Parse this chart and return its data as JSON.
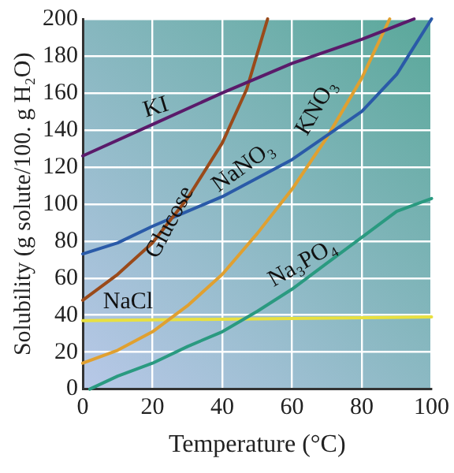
{
  "chart_data": {
    "type": "line",
    "xlabel": "Temperature (°C)",
    "ylabel": "Solubility (g solute/100. g H₂O)",
    "xlim": [
      0,
      100
    ],
    "xticks": [
      0,
      20,
      40,
      60,
      80,
      100
    ],
    "ylim": [
      0,
      200
    ],
    "yticks": [
      0,
      20,
      40,
      60,
      80,
      100,
      120,
      140,
      160,
      180,
      200
    ],
    "grid": true,
    "legend": false,
    "marker": "none",
    "series": [
      {
        "name": "KI",
        "color": "#5a1a6a",
        "x": [
          0,
          20,
          40,
          60,
          80,
          95
        ],
        "values": [
          126,
          143,
          160,
          176,
          189,
          200
        ]
      },
      {
        "name": "Glucose",
        "color": "#9a4a1a",
        "x": [
          0,
          10,
          20,
          30,
          40,
          47,
          53
        ],
        "values": [
          48,
          62,
          79,
          103,
          133,
          162,
          200
        ]
      },
      {
        "name": "NaNO₃",
        "color": "#2a5aa8",
        "x": [
          0,
          10,
          20,
          30,
          40,
          50,
          60,
          70,
          80,
          90,
          100
        ],
        "values": [
          73,
          79,
          88,
          96,
          104,
          114,
          124,
          137,
          150,
          170,
          200
        ]
      },
      {
        "name": "KNO₃",
        "color": "#e0a030",
        "x": [
          0,
          10,
          20,
          30,
          40,
          50,
          60,
          70,
          80,
          88
        ],
        "values": [
          14,
          21,
          31,
          45,
          62,
          84,
          108,
          136,
          168,
          200
        ]
      },
      {
        "name": "Na₃PO₄",
        "color": "#2a9a80",
        "x": [
          2,
          10,
          20,
          30,
          40,
          50,
          60,
          70,
          80,
          90,
          100
        ],
        "values": [
          0,
          7,
          14,
          23,
          31,
          42,
          54,
          68,
          82,
          96,
          103
        ]
      },
      {
        "name": "NaCl",
        "color": "#e8e040",
        "x": [
          0,
          100
        ],
        "values": [
          37,
          39
        ]
      }
    ]
  }
}
